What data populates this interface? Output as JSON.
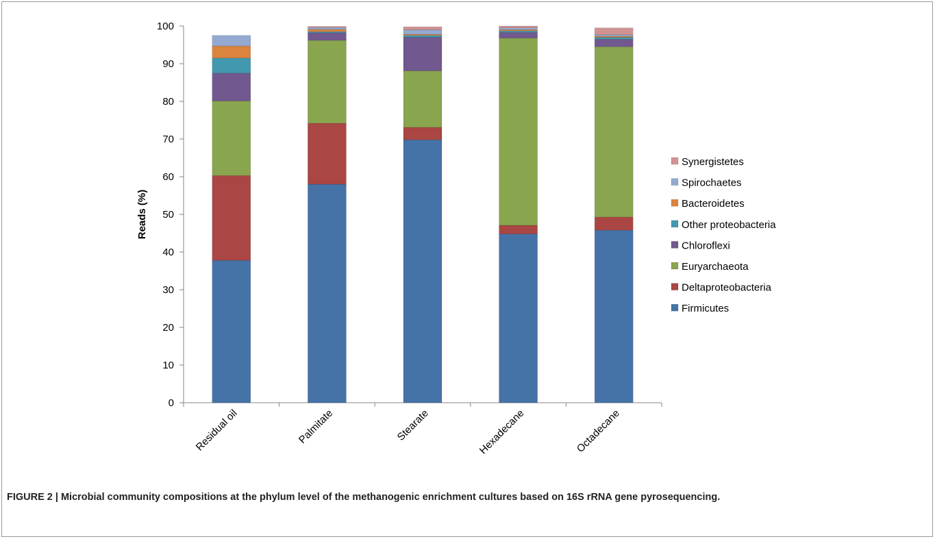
{
  "chart_data": {
    "type": "bar",
    "stacked": true,
    "ylabel": "Reads (%)",
    "xlabel": "",
    "ylim": [
      0,
      100
    ],
    "yticks": [
      "0",
      "10",
      "20",
      "30",
      "40",
      "50",
      "60",
      "70",
      "80",
      "90",
      "100"
    ],
    "grid": false,
    "legend_position": "right",
    "categories": [
      "Residual oil",
      "Palmitate",
      "Stearate",
      "Hexadecane",
      "Octadecane"
    ],
    "series": [
      {
        "name": "Firmicutes",
        "color": "#4572A7",
        "values": [
          37.8,
          58.0,
          69.8,
          44.8,
          45.8
        ]
      },
      {
        "name": "Deltaproteobacteria",
        "color": "#AA4643",
        "values": [
          22.5,
          16.2,
          3.3,
          2.3,
          3.5
        ]
      },
      {
        "name": "Euryarchaeota",
        "color": "#89A54E",
        "values": [
          19.8,
          22.0,
          15.0,
          49.7,
          45.2
        ]
      },
      {
        "name": "Chloroflexi",
        "color": "#71588F",
        "values": [
          7.4,
          2.0,
          8.9,
          1.5,
          2.0
        ]
      },
      {
        "name": "Other proteobacteria",
        "color": "#4198AF",
        "values": [
          4.0,
          0.3,
          0.5,
          0.4,
          0.5
        ]
      },
      {
        "name": "Bacteroidetes",
        "color": "#DB843D",
        "values": [
          3.2,
          0.6,
          0.3,
          0.3,
          0.3
        ]
      },
      {
        "name": "Spirochaetes",
        "color": "#93A9CF",
        "values": [
          2.8,
          0.5,
          1.2,
          0.5,
          0.4
        ]
      },
      {
        "name": "Synergistetes",
        "color": "#D19392",
        "values": [
          0.0,
          0.3,
          0.8,
          0.5,
          1.8
        ]
      }
    ]
  },
  "caption": {
    "label": "FIGURE 2 |",
    "text": "Microbial community compositions at the phylum level of the methanogenic enrichment cultures based on 16S rRNA gene pyrosequencing."
  }
}
